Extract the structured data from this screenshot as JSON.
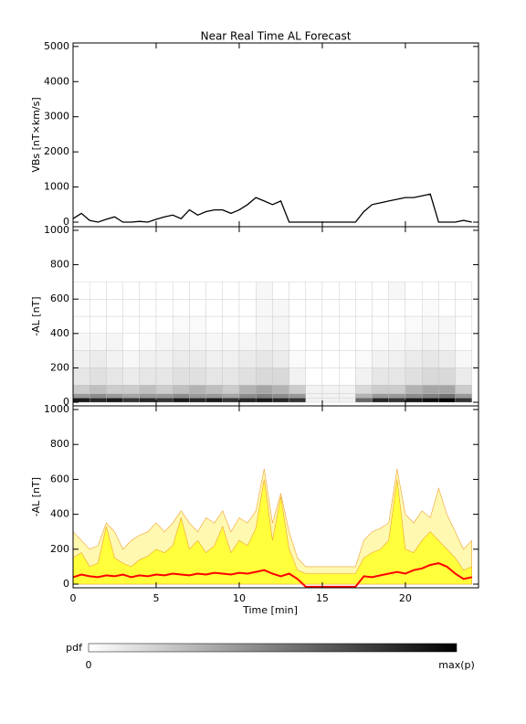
{
  "chart_data": [
    {
      "type": "line",
      "title": "Near Real Time AL Forecast",
      "y_label": "VBs [nT×km/s]",
      "x": [
        0,
        0.5,
        1,
        1.5,
        2,
        2.5,
        3,
        3.5,
        4,
        4.5,
        5,
        5.5,
        6,
        6.5,
        7,
        7.5,
        8,
        8.5,
        9,
        9.5,
        10,
        10.5,
        11,
        11.5,
        12,
        12.5,
        13,
        13.5,
        14,
        14.5,
        15,
        15.5,
        16,
        16.5,
        17,
        17.5,
        18,
        18.5,
        19,
        19.5,
        20,
        20.5,
        21,
        21.5,
        22,
        22.5,
        23,
        23.5,
        24
      ],
      "values": [
        100,
        250,
        50,
        0,
        80,
        150,
        0,
        0,
        20,
        0,
        80,
        150,
        200,
        100,
        350,
        200,
        300,
        350,
        350,
        250,
        350,
        500,
        700,
        600,
        500,
        600,
        0,
        0,
        0,
        0,
        0,
        0,
        0,
        0,
        0,
        300,
        500,
        550,
        600,
        650,
        700,
        700,
        750,
        800,
        0,
        0,
        0,
        50,
        0
      ],
      "color": "#000000",
      "xlim": [
        0,
        24.4
      ],
      "xticks": [
        0,
        5,
        10,
        15,
        20
      ],
      "ylim": [
        -130,
        5100
      ],
      "yticks": [
        0,
        1000,
        2000,
        3000,
        4000,
        5000
      ]
    },
    {
      "type": "heatmap",
      "y_label": "-AL [nT]",
      "x_edges": [
        0,
        1,
        2,
        3,
        4,
        5,
        6,
        7,
        8,
        9,
        10,
        11,
        12,
        13,
        14,
        15,
        16,
        17,
        18,
        19,
        20,
        21,
        22,
        23,
        24
      ],
      "y_edges": [
        0,
        25,
        50,
        100,
        200,
        300,
        400,
        500,
        600,
        700
      ],
      "z": [
        [
          0.9,
          0.85,
          0.9,
          0.8,
          0.85,
          0.8,
          0.9,
          0.85,
          0.9,
          0.8,
          0.85,
          0.9,
          0.85,
          0.8,
          0.05,
          0.05,
          0.05,
          0.6,
          0.85,
          0.8,
          0.9,
          0.95,
          1,
          0.8
        ],
        [
          0.4,
          0.45,
          0.4,
          0.35,
          0.4,
          0.4,
          0.45,
          0.4,
          0.4,
          0.35,
          0.45,
          0.5,
          0.45,
          0.4,
          0.05,
          0.05,
          0.05,
          0.3,
          0.4,
          0.4,
          0.45,
          0.5,
          0.55,
          0.4
        ],
        [
          0.2,
          0.25,
          0.2,
          0.2,
          0.25,
          0.2,
          0.25,
          0.3,
          0.25,
          0.2,
          0.3,
          0.35,
          0.3,
          0.2,
          0.05,
          0.05,
          0.05,
          0.15,
          0.2,
          0.2,
          0.3,
          0.35,
          0.35,
          0.2
        ],
        [
          0.1,
          0.12,
          0.1,
          0.08,
          0.1,
          0.1,
          0.12,
          0.12,
          0.1,
          0.1,
          0.12,
          0.15,
          0.15,
          0.05,
          0,
          0,
          0,
          0.05,
          0.1,
          0.1,
          0.12,
          0.15,
          0.15,
          0.08
        ],
        [
          0.06,
          0.08,
          0.05,
          0.03,
          0.06,
          0.06,
          0.08,
          0.08,
          0.06,
          0.06,
          0.08,
          0.1,
          0.08,
          0.02,
          0,
          0,
          0,
          0.02,
          0.05,
          0.06,
          0.08,
          0.1,
          0.08,
          0.03
        ],
        [
          0.03,
          0.03,
          0.04,
          0,
          0.02,
          0.04,
          0.05,
          0.04,
          0.03,
          0.03,
          0.04,
          0.05,
          0.05,
          0,
          0,
          0,
          0,
          0,
          0.02,
          0.03,
          0.04,
          0.05,
          0.04,
          0
        ],
        [
          0,
          0,
          0,
          0,
          0,
          0,
          0.02,
          0.02,
          0,
          0,
          0,
          0.03,
          0.04,
          0,
          0,
          0,
          0,
          0,
          0,
          0,
          0.02,
          0.03,
          0.03,
          0
        ],
        [
          0,
          0,
          0,
          0,
          0,
          0,
          0,
          0,
          0,
          0,
          0,
          0.03,
          0.03,
          0,
          0,
          0,
          0,
          0,
          0,
          0,
          0,
          0.02,
          0,
          0
        ],
        [
          0,
          0,
          0,
          0,
          0,
          0,
          0,
          0,
          0,
          0,
          0,
          0.03,
          0,
          0,
          0,
          0,
          0,
          0,
          0,
          0.03,
          0,
          0,
          0,
          0
        ]
      ],
      "colorbar": {
        "label": "pdf",
        "min_label": "0",
        "max_label": "max(p)"
      },
      "xlim": [
        0,
        24.4
      ],
      "xticks": [
        0,
        5,
        10,
        15,
        20
      ],
      "ylim": [
        -21,
        1021
      ],
      "yticks": [
        0,
        200,
        400,
        600,
        800,
        1000
      ]
    },
    {
      "type": "band",
      "y_label": "-AL [nT]",
      "x_label": "Time [min]",
      "x": [
        0,
        0.5,
        1,
        1.5,
        2,
        2.5,
        3,
        3.5,
        4,
        4.5,
        5,
        5.5,
        6,
        6.5,
        7,
        7.5,
        8,
        8.5,
        9,
        9.5,
        10,
        10.5,
        11,
        11.5,
        12,
        12.5,
        13,
        13.5,
        14,
        14.5,
        15,
        15.5,
        16,
        16.5,
        17,
        17.5,
        18,
        18.5,
        19,
        19.5,
        20,
        20.5,
        21,
        21.5,
        22,
        22.5,
        23,
        23.5,
        24
      ],
      "series": [
        {
          "color": "#fff8b0",
          "style": "area",
          "values": [
            300,
            250,
            200,
            220,
            350,
            300,
            200,
            250,
            280,
            300,
            350,
            300,
            350,
            420,
            350,
            300,
            380,
            350,
            420,
            300,
            380,
            350,
            420,
            660,
            350,
            520,
            300,
            150,
            100,
            100,
            100,
            100,
            100,
            100,
            100,
            250,
            300,
            320,
            350,
            660,
            400,
            350,
            420,
            380,
            550,
            400,
            300,
            200,
            250
          ]
        },
        {
          "color": "#ffff3c",
          "style": "area",
          "values": [
            150,
            180,
            100,
            120,
            330,
            150,
            120,
            100,
            140,
            160,
            200,
            180,
            220,
            380,
            200,
            250,
            180,
            220,
            330,
            180,
            250,
            220,
            320,
            600,
            250,
            500,
            200,
            80,
            60,
            60,
            60,
            60,
            60,
            60,
            60,
            150,
            180,
            200,
            250,
            600,
            200,
            180,
            250,
            300,
            250,
            200,
            150,
            80,
            100
          ]
        },
        {
          "color": "#ff0000",
          "style": "line",
          "values": [
            40,
            55,
            45,
            40,
            50,
            45,
            55,
            40,
            50,
            45,
            55,
            50,
            60,
            55,
            50,
            60,
            55,
            65,
            60,
            55,
            65,
            60,
            70,
            80,
            60,
            45,
            60,
            30,
            -15,
            -15,
            -15,
            -15,
            -15,
            -15,
            -15,
            45,
            40,
            50,
            60,
            70,
            60,
            80,
            90,
            110,
            120,
            100,
            60,
            30,
            40
          ]
        }
      ],
      "xlim": [
        0,
        24.4
      ],
      "xticks": [
        0,
        5,
        10,
        15,
        20
      ],
      "ylim": [
        -21,
        1021
      ],
      "yticks": [
        0,
        200,
        400,
        600,
        800,
        1000
      ]
    }
  ]
}
